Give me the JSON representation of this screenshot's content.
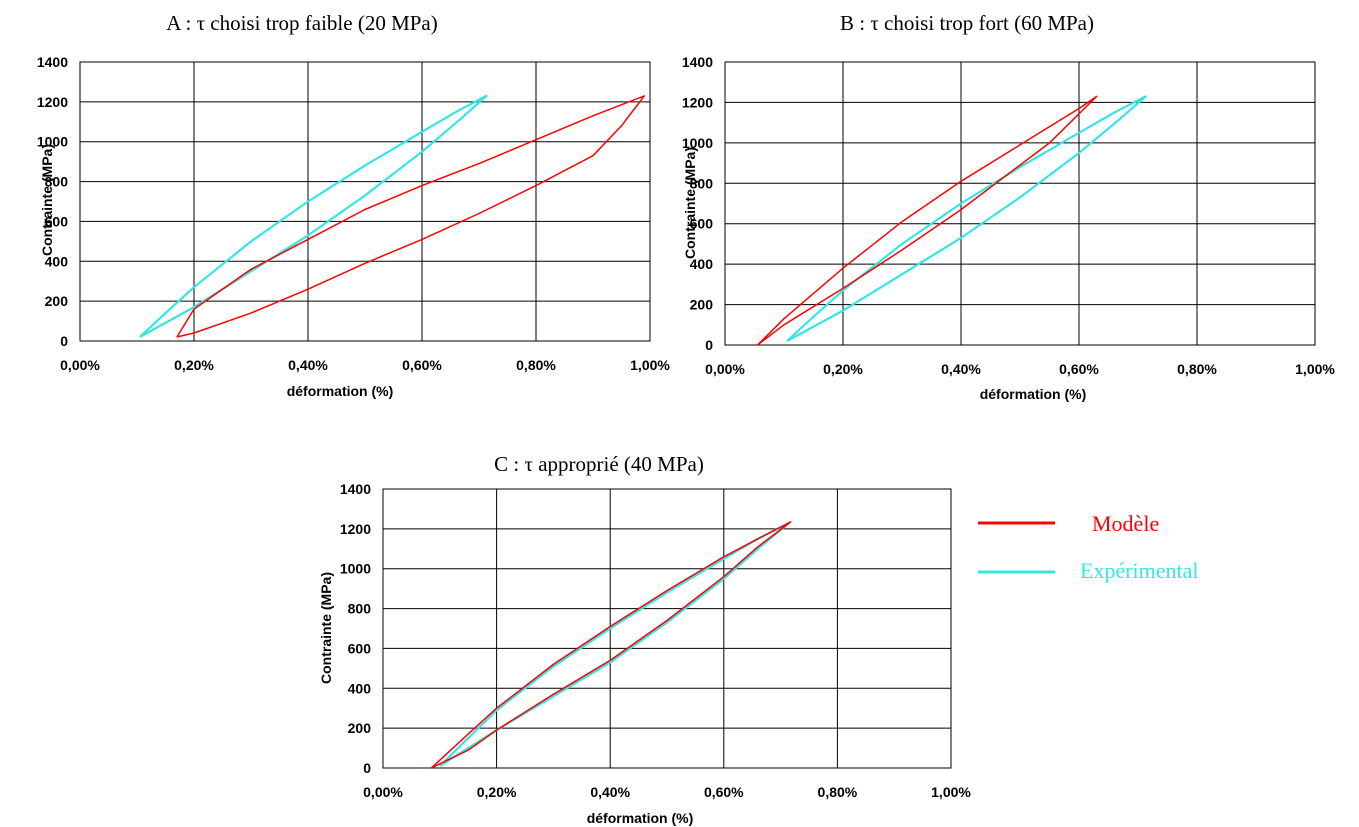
{
  "colors": {
    "model": "#ff0000",
    "experimental": "#33e6e6",
    "grid": "#000000"
  },
  "legend": {
    "items": [
      {
        "series": "model",
        "label": "Modèle"
      },
      {
        "series": "experimental",
        "label": "Expérimental"
      }
    ]
  },
  "chart_data": [
    {
      "id": "A",
      "type": "line",
      "title": "A : τ choisi trop faible (20 MPa)",
      "xlabel": "déformation (%)",
      "ylabel": "Contrainte (MPa)",
      "xlim": [
        0,
        1.0
      ],
      "ylim": [
        0,
        1400
      ],
      "xticks": [
        "0,00%",
        "0,20%",
        "0,40%",
        "0,60%",
        "0,80%",
        "1,00%"
      ],
      "yticks": [
        "0",
        "200",
        "400",
        "600",
        "800",
        "1000",
        "1200",
        "1400"
      ],
      "grid": true,
      "series": [
        {
          "name": "Expérimental",
          "key": "experimental",
          "x": [
            0.105,
            0.15,
            0.2,
            0.3,
            0.4,
            0.5,
            0.6,
            0.66,
            0.713,
            0.67,
            0.6,
            0.5,
            0.4,
            0.3,
            0.2,
            0.105
          ],
          "y": [
            20,
            140,
            270,
            500,
            700,
            880,
            1050,
            1150,
            1230,
            1120,
            950,
            730,
            530,
            350,
            170,
            20
          ]
        },
        {
          "name": "Modèle",
          "key": "model",
          "x": [
            0.17,
            0.2,
            0.3,
            0.4,
            0.5,
            0.6,
            0.7,
            0.8,
            0.9,
            0.99,
            0.95,
            0.9,
            0.8,
            0.7,
            0.6,
            0.5,
            0.4,
            0.3,
            0.2,
            0.17
          ],
          "y": [
            20,
            160,
            360,
            510,
            660,
            780,
            890,
            1010,
            1130,
            1230,
            1080,
            930,
            780,
            640,
            510,
            390,
            260,
            140,
            40,
            20
          ]
        }
      ]
    },
    {
      "id": "B",
      "type": "line",
      "title": "B : τ choisi trop fort (60 MPa)",
      "xlabel": "déformation (%)",
      "ylabel": "Contrainte (MPa)",
      "xlim": [
        0,
        1.0
      ],
      "ylim": [
        0,
        1400
      ],
      "xticks": [
        "0,00%",
        "0,20%",
        "0,40%",
        "0,60%",
        "0,80%",
        "1,00%"
      ],
      "yticks": [
        "0",
        "200",
        "400",
        "600",
        "800",
        "1000",
        "1200",
        "1400"
      ],
      "grid": true,
      "series": [
        {
          "name": "Expérimental",
          "key": "experimental",
          "x": [
            0.105,
            0.15,
            0.2,
            0.3,
            0.4,
            0.5,
            0.6,
            0.66,
            0.713,
            0.67,
            0.6,
            0.5,
            0.4,
            0.3,
            0.2,
            0.105
          ],
          "y": [
            20,
            140,
            270,
            500,
            700,
            880,
            1050,
            1150,
            1230,
            1120,
            950,
            730,
            530,
            350,
            170,
            20
          ]
        },
        {
          "name": "Modèle",
          "key": "model",
          "x": [
            0.055,
            0.1,
            0.2,
            0.3,
            0.4,
            0.5,
            0.6,
            0.63,
            0.55,
            0.5,
            0.4,
            0.3,
            0.2,
            0.1,
            0.055
          ],
          "y": [
            0,
            130,
            380,
            610,
            810,
            990,
            1170,
            1230,
            1000,
            890,
            670,
            470,
            280,
            100,
            0
          ]
        }
      ]
    },
    {
      "id": "C",
      "type": "line",
      "title": "C : τ approprié (40 MPa)",
      "xlabel": "déformation (%)",
      "ylabel": "Contrainte (MPa)",
      "xlim": [
        0,
        1.0
      ],
      "ylim": [
        0,
        1400
      ],
      "xticks": [
        "0,00%",
        "0,20%",
        "0,40%",
        "0,60%",
        "0,80%",
        "1,00%"
      ],
      "yticks": [
        "0",
        "200",
        "400",
        "600",
        "800",
        "1000",
        "1200",
        "1400"
      ],
      "grid": true,
      "series": [
        {
          "name": "Expérimental",
          "key": "experimental",
          "x": [
            0.1,
            0.15,
            0.2,
            0.3,
            0.4,
            0.5,
            0.6,
            0.66,
            0.715,
            0.66,
            0.6,
            0.5,
            0.4,
            0.3,
            0.2,
            0.15,
            0.1
          ],
          "y": [
            10,
            150,
            290,
            510,
            700,
            880,
            1050,
            1150,
            1230,
            1100,
            950,
            730,
            530,
            360,
            190,
            100,
            10
          ]
        },
        {
          "name": "Modèle",
          "key": "model",
          "x": [
            0.085,
            0.15,
            0.2,
            0.3,
            0.4,
            0.5,
            0.6,
            0.66,
            0.718,
            0.66,
            0.6,
            0.5,
            0.4,
            0.3,
            0.2,
            0.15,
            0.085
          ],
          "y": [
            0,
            170,
            300,
            520,
            710,
            890,
            1060,
            1150,
            1235,
            1110,
            960,
            740,
            540,
            370,
            190,
            90,
            0
          ]
        }
      ]
    }
  ]
}
